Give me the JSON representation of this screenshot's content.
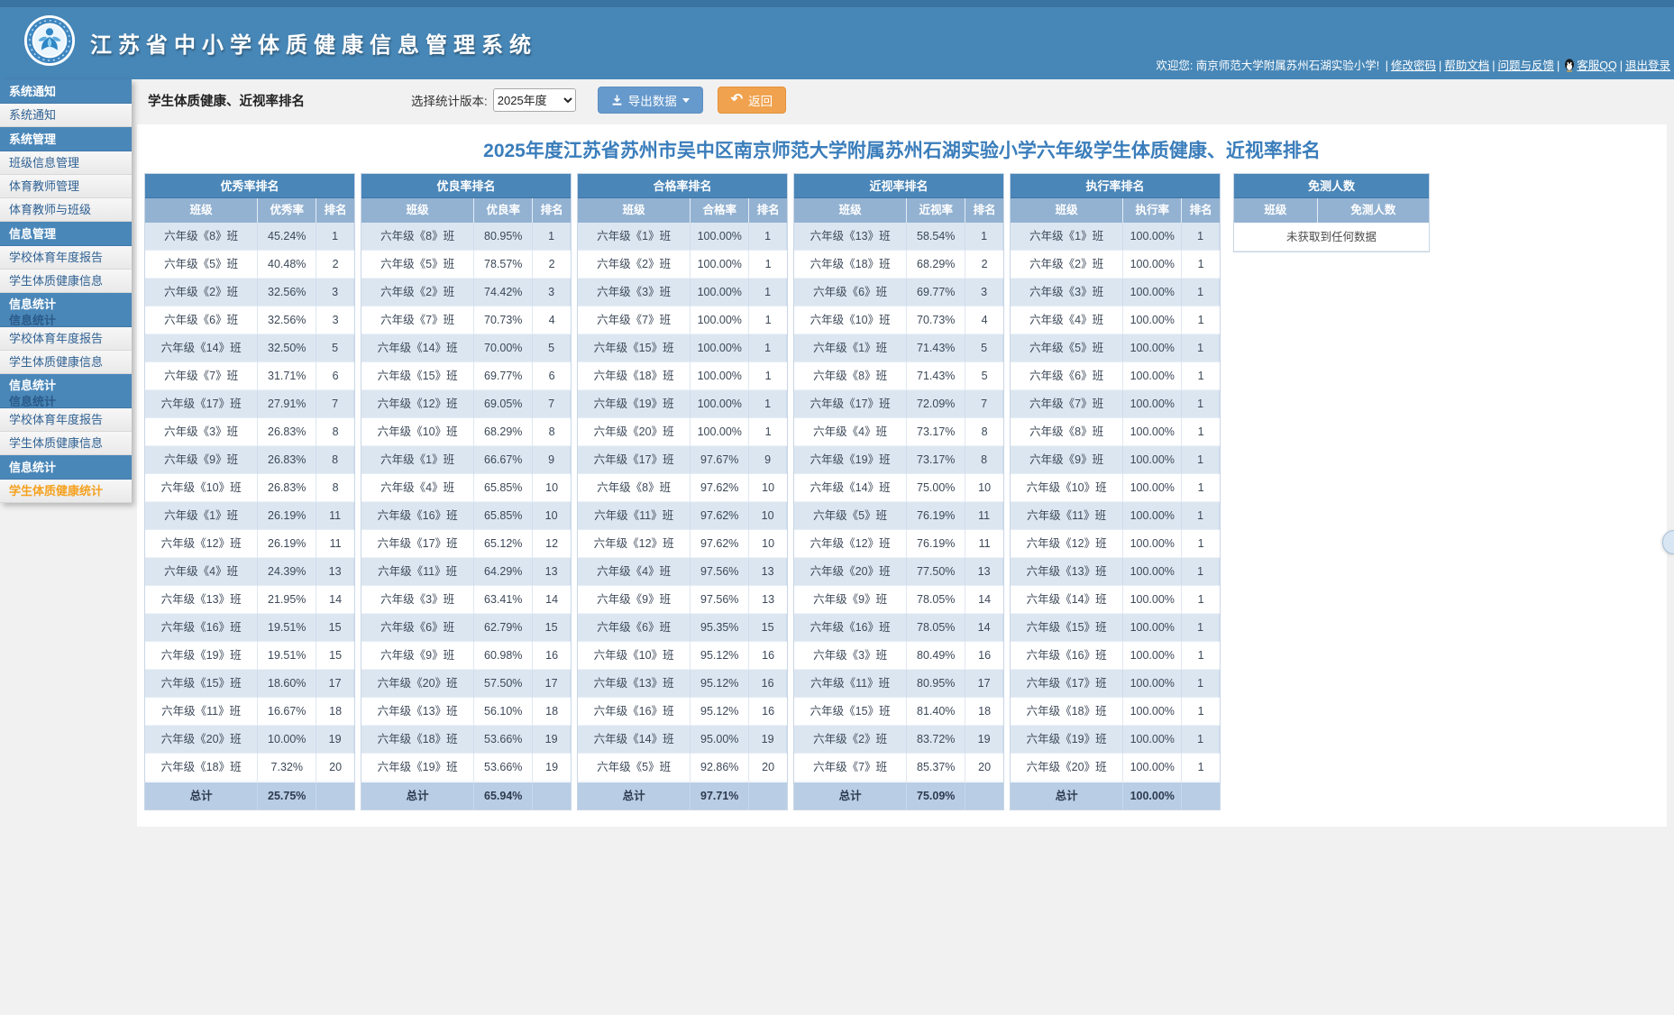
{
  "header": {
    "app_title": "江苏省中小学体质健康信息管理系统",
    "welcome": "欢迎您: 南京师范大学附属苏州石湖实验小学!",
    "links": [
      "修改密码",
      "帮助文档",
      "问题与反馈",
      "客服QQ",
      "退出登录"
    ]
  },
  "sidebar": {
    "entries": [
      {
        "type": "header",
        "label": "系统通知"
      },
      {
        "type": "item",
        "label": "系统通知"
      },
      {
        "type": "header",
        "label": "系统管理"
      },
      {
        "type": "item",
        "label": "班级信息管理"
      },
      {
        "type": "item",
        "label": "体育教师管理"
      },
      {
        "type": "item",
        "label": "体育教师与班级"
      },
      {
        "type": "header",
        "label": "信息管理"
      },
      {
        "type": "item",
        "label": "学校体育年度报告"
      },
      {
        "type": "item",
        "label": "学生体质健康信息"
      },
      {
        "type": "header",
        "label": "信息统计",
        "glitch": true
      },
      {
        "type": "item",
        "label": "学校体育年度报告"
      },
      {
        "type": "item",
        "label": "学生体质健康信息"
      },
      {
        "type": "header",
        "label": "信息统计",
        "glitch": true
      },
      {
        "type": "item",
        "label": "学校体育年度报告"
      },
      {
        "type": "item",
        "label": "学生体质健康信息"
      },
      {
        "type": "header",
        "label": "信息统计"
      },
      {
        "type": "item",
        "label": "学生体质健康统计",
        "active": true
      }
    ]
  },
  "toolbar": {
    "page_title": "学生体质健康、近视率排名",
    "version_label": "选择统计版本:",
    "version_value": "2025年度",
    "export_label": "导出数据",
    "back_label": "返回"
  },
  "main": {
    "title": "2025年度江苏省苏州市吴中区南京师范大学附属苏州石湖实验小学六年级学生体质健康、近视率排名",
    "tables": [
      {
        "group": "优秀率排名",
        "columns": [
          "班级",
          "优秀率",
          "排名"
        ],
        "rows": [
          [
            "六年级《8》班",
            "45.24%",
            "1"
          ],
          [
            "六年级《5》班",
            "40.48%",
            "2"
          ],
          [
            "六年级《2》班",
            "32.56%",
            "3"
          ],
          [
            "六年级《6》班",
            "32.56%",
            "3"
          ],
          [
            "六年级《14》班",
            "32.50%",
            "5"
          ],
          [
            "六年级《7》班",
            "31.71%",
            "6"
          ],
          [
            "六年级《17》班",
            "27.91%",
            "7"
          ],
          [
            "六年级《3》班",
            "26.83%",
            "8"
          ],
          [
            "六年级《9》班",
            "26.83%",
            "8"
          ],
          [
            "六年级《10》班",
            "26.83%",
            "8"
          ],
          [
            "六年级《1》班",
            "26.19%",
            "11"
          ],
          [
            "六年级《12》班",
            "26.19%",
            "11"
          ],
          [
            "六年级《4》班",
            "24.39%",
            "13"
          ],
          [
            "六年级《13》班",
            "21.95%",
            "14"
          ],
          [
            "六年级《16》班",
            "19.51%",
            "15"
          ],
          [
            "六年级《19》班",
            "19.51%",
            "15"
          ],
          [
            "六年级《15》班",
            "18.60%",
            "17"
          ],
          [
            "六年级《11》班",
            "16.67%",
            "18"
          ],
          [
            "六年级《20》班",
            "10.00%",
            "19"
          ],
          [
            "六年级《18》班",
            "7.32%",
            "20"
          ]
        ],
        "total": [
          "总计",
          "25.75%",
          ""
        ]
      },
      {
        "group": "优良率排名",
        "columns": [
          "班级",
          "优良率",
          "排名"
        ],
        "rows": [
          [
            "六年级《8》班",
            "80.95%",
            "1"
          ],
          [
            "六年级《5》班",
            "78.57%",
            "2"
          ],
          [
            "六年级《2》班",
            "74.42%",
            "3"
          ],
          [
            "六年级《7》班",
            "70.73%",
            "4"
          ],
          [
            "六年级《14》班",
            "70.00%",
            "5"
          ],
          [
            "六年级《15》班",
            "69.77%",
            "6"
          ],
          [
            "六年级《12》班",
            "69.05%",
            "7"
          ],
          [
            "六年级《10》班",
            "68.29%",
            "8"
          ],
          [
            "六年级《1》班",
            "66.67%",
            "9"
          ],
          [
            "六年级《4》班",
            "65.85%",
            "10"
          ],
          [
            "六年级《16》班",
            "65.85%",
            "10"
          ],
          [
            "六年级《17》班",
            "65.12%",
            "12"
          ],
          [
            "六年级《11》班",
            "64.29%",
            "13"
          ],
          [
            "六年级《3》班",
            "63.41%",
            "14"
          ],
          [
            "六年级《6》班",
            "62.79%",
            "15"
          ],
          [
            "六年级《9》班",
            "60.98%",
            "16"
          ],
          [
            "六年级《20》班",
            "57.50%",
            "17"
          ],
          [
            "六年级《13》班",
            "56.10%",
            "18"
          ],
          [
            "六年级《18》班",
            "53.66%",
            "19"
          ],
          [
            "六年级《19》班",
            "53.66%",
            "19"
          ]
        ],
        "total": [
          "总计",
          "65.94%",
          ""
        ]
      },
      {
        "group": "合格率排名",
        "columns": [
          "班级",
          "合格率",
          "排名"
        ],
        "rows": [
          [
            "六年级《1》班",
            "100.00%",
            "1"
          ],
          [
            "六年级《2》班",
            "100.00%",
            "1"
          ],
          [
            "六年级《3》班",
            "100.00%",
            "1"
          ],
          [
            "六年级《7》班",
            "100.00%",
            "1"
          ],
          [
            "六年级《15》班",
            "100.00%",
            "1"
          ],
          [
            "六年级《18》班",
            "100.00%",
            "1"
          ],
          [
            "六年级《19》班",
            "100.00%",
            "1"
          ],
          [
            "六年级《20》班",
            "100.00%",
            "1"
          ],
          [
            "六年级《17》班",
            "97.67%",
            "9"
          ],
          [
            "六年级《8》班",
            "97.62%",
            "10"
          ],
          [
            "六年级《11》班",
            "97.62%",
            "10"
          ],
          [
            "六年级《12》班",
            "97.62%",
            "10"
          ],
          [
            "六年级《4》班",
            "97.56%",
            "13"
          ],
          [
            "六年级《9》班",
            "97.56%",
            "13"
          ],
          [
            "六年级《6》班",
            "95.35%",
            "15"
          ],
          [
            "六年级《10》班",
            "95.12%",
            "16"
          ],
          [
            "六年级《13》班",
            "95.12%",
            "16"
          ],
          [
            "六年级《16》班",
            "95.12%",
            "16"
          ],
          [
            "六年级《14》班",
            "95.00%",
            "19"
          ],
          [
            "六年级《5》班",
            "92.86%",
            "20"
          ]
        ],
        "total": [
          "总计",
          "97.71%",
          ""
        ]
      },
      {
        "group": "近视率排名",
        "columns": [
          "班级",
          "近视率",
          "排名"
        ],
        "rows": [
          [
            "六年级《13》班",
            "58.54%",
            "1"
          ],
          [
            "六年级《18》班",
            "68.29%",
            "2"
          ],
          [
            "六年级《6》班",
            "69.77%",
            "3"
          ],
          [
            "六年级《10》班",
            "70.73%",
            "4"
          ],
          [
            "六年级《1》班",
            "71.43%",
            "5"
          ],
          [
            "六年级《8》班",
            "71.43%",
            "5"
          ],
          [
            "六年级《17》班",
            "72.09%",
            "7"
          ],
          [
            "六年级《4》班",
            "73.17%",
            "8"
          ],
          [
            "六年级《19》班",
            "73.17%",
            "8"
          ],
          [
            "六年级《14》班",
            "75.00%",
            "10"
          ],
          [
            "六年级《5》班",
            "76.19%",
            "11"
          ],
          [
            "六年级《12》班",
            "76.19%",
            "11"
          ],
          [
            "六年级《20》班",
            "77.50%",
            "13"
          ],
          [
            "六年级《9》班",
            "78.05%",
            "14"
          ],
          [
            "六年级《16》班",
            "78.05%",
            "14"
          ],
          [
            "六年级《3》班",
            "80.49%",
            "16"
          ],
          [
            "六年级《11》班",
            "80.95%",
            "17"
          ],
          [
            "六年级《15》班",
            "81.40%",
            "18"
          ],
          [
            "六年级《2》班",
            "83.72%",
            "19"
          ],
          [
            "六年级《7》班",
            "85.37%",
            "20"
          ]
        ],
        "total": [
          "总计",
          "75.09%",
          ""
        ]
      },
      {
        "group": "执行率排名",
        "columns": [
          "班级",
          "执行率",
          "排名"
        ],
        "rows": [
          [
            "六年级《1》班",
            "100.00%",
            "1"
          ],
          [
            "六年级《2》班",
            "100.00%",
            "1"
          ],
          [
            "六年级《3》班",
            "100.00%",
            "1"
          ],
          [
            "六年级《4》班",
            "100.00%",
            "1"
          ],
          [
            "六年级《5》班",
            "100.00%",
            "1"
          ],
          [
            "六年级《6》班",
            "100.00%",
            "1"
          ],
          [
            "六年级《7》班",
            "100.00%",
            "1"
          ],
          [
            "六年级《8》班",
            "100.00%",
            "1"
          ],
          [
            "六年级《9》班",
            "100.00%",
            "1"
          ],
          [
            "六年级《10》班",
            "100.00%",
            "1"
          ],
          [
            "六年级《11》班",
            "100.00%",
            "1"
          ],
          [
            "六年级《12》班",
            "100.00%",
            "1"
          ],
          [
            "六年级《13》班",
            "100.00%",
            "1"
          ],
          [
            "六年级《14》班",
            "100.00%",
            "1"
          ],
          [
            "六年级《15》班",
            "100.00%",
            "1"
          ],
          [
            "六年级《16》班",
            "100.00%",
            "1"
          ],
          [
            "六年级《17》班",
            "100.00%",
            "1"
          ],
          [
            "六年级《18》班",
            "100.00%",
            "1"
          ],
          [
            "六年级《19》班",
            "100.00%",
            "1"
          ],
          [
            "六年级《20》班",
            "100.00%",
            "1"
          ]
        ],
        "total": [
          "总计",
          "100.00%",
          ""
        ]
      },
      {
        "group": "免测人数",
        "columns": [
          "班级",
          "免测人数"
        ],
        "rows": [],
        "empty_text": "未获取到任何数据"
      }
    ]
  },
  "colors": {
    "topband": "#4787b7",
    "sidebar_header": "#4a87b9",
    "active_item": "#f5a21f",
    "group_header": "#4a86b8",
    "column_header": "#93b2d2",
    "row_tint": "#dce6f1",
    "totals_row": "#b9cde5",
    "export_button": "#6699cc",
    "back_button": "#f0a24e",
    "title_blue": "#3a7dbb"
  }
}
